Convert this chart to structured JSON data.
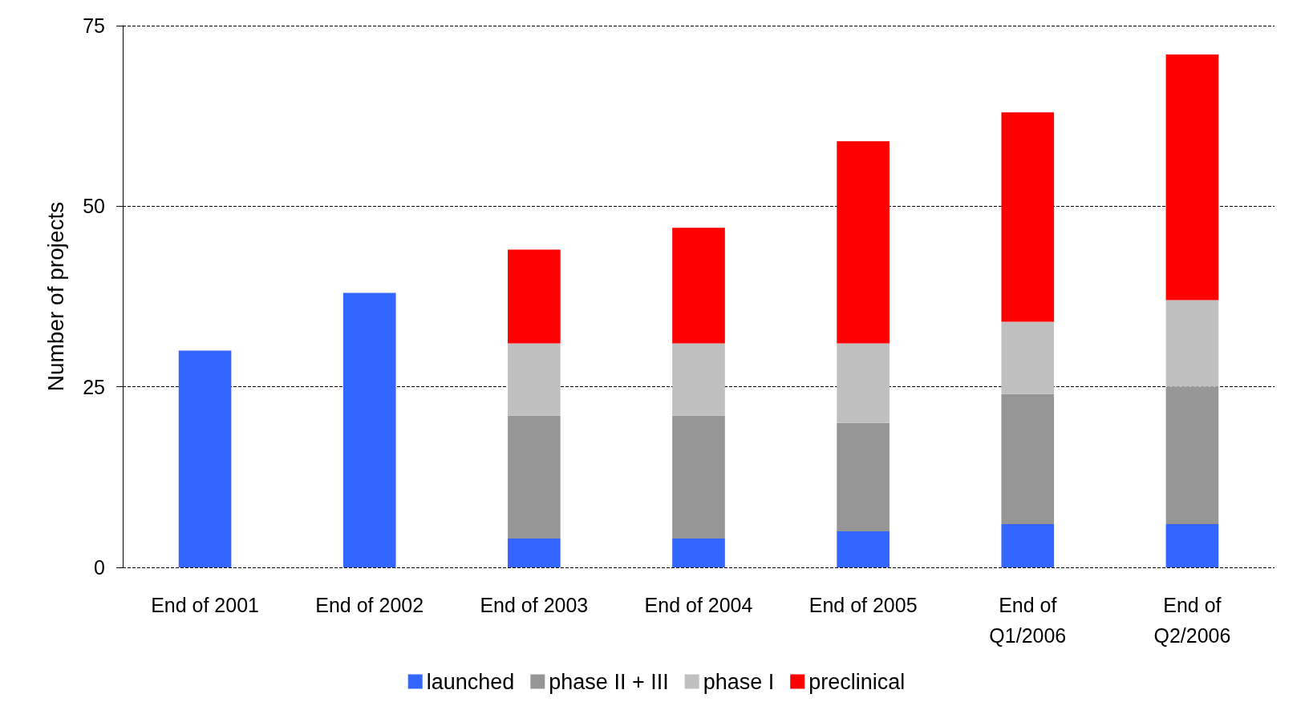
{
  "chart_data": {
    "type": "bar",
    "stacked": true,
    "ylabel": "Number of projects",
    "categories": [
      "End of 2001",
      "End of 2002",
      "End of 2003",
      "End of 2004",
      "End of 2005",
      "End of\nQ1/2006",
      "End of\nQ2/2006"
    ],
    "series": [
      {
        "name": "launched",
        "color": "#3366ff",
        "values": [
          30,
          38,
          4,
          4,
          5,
          6,
          6
        ]
      },
      {
        "name": "phase II + III",
        "color": "#969696",
        "values": [
          null,
          null,
          17,
          17,
          15,
          18,
          19
        ]
      },
      {
        "name": "phase I",
        "color": "#c0c0c0",
        "values": [
          null,
          null,
          10,
          10,
          11,
          10,
          12
        ]
      },
      {
        "name": "preclinical",
        "color": "#ff0000",
        "values": [
          null,
          null,
          13,
          16,
          28,
          29,
          34
        ]
      }
    ],
    "ylim": [
      0,
      75
    ],
    "yticks": [
      0,
      25,
      50,
      75
    ],
    "grid": "y",
    "legend": "bottom"
  }
}
